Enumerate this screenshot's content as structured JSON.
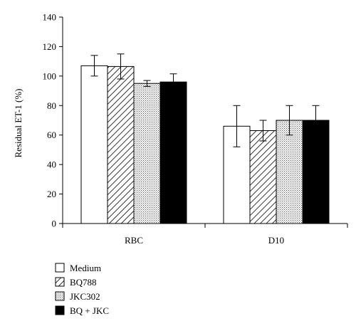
{
  "chart_data": {
    "type": "bar",
    "title": "",
    "xlabel": "",
    "ylabel": "Residual ET-1 (%)",
    "ylim": [
      0,
      140
    ],
    "yticks": [
      0,
      20,
      40,
      60,
      80,
      100,
      120,
      140
    ],
    "categories": [
      "RBC",
      "D10"
    ],
    "grid": false,
    "legend_position": "bottom-left",
    "series": [
      {
        "name": "Medium",
        "pattern": "white",
        "values": [
          107,
          66
        ],
        "errors": [
          7,
          14
        ]
      },
      {
        "name": "BQ788",
        "pattern": "hatched",
        "values": [
          106.5,
          63
        ],
        "errors": [
          8.5,
          7
        ]
      },
      {
        "name": "JKC302",
        "pattern": "dotted",
        "values": [
          95,
          70
        ],
        "errors": [
          2,
          10
        ]
      },
      {
        "name": "BQ + JKC",
        "pattern": "black",
        "values": [
          96,
          70
        ],
        "errors": [
          5.5,
          10
        ]
      }
    ]
  }
}
